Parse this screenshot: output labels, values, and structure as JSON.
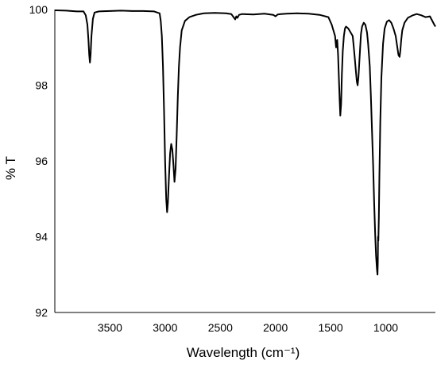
{
  "chart_data": {
    "type": "line",
    "xlabel": "Wavelength (cm⁻¹)",
    "ylabel": "% T",
    "xlim": [
      4000,
      550
    ],
    "ylim": [
      92,
      100
    ],
    "x_reversed": true,
    "xticks": [
      {
        "value": 3500,
        "label": "3500"
      },
      {
        "value": 3000,
        "label": "3000"
      },
      {
        "value": 2500,
        "label": "2500"
      },
      {
        "value": 2000,
        "label": "2000"
      },
      {
        "value": 1500,
        "label": "1500"
      },
      {
        "value": 1000,
        "label": "1000"
      }
    ],
    "yticks": [
      {
        "value": 100,
        "label": "100"
      },
      {
        "value": 98,
        "label": "98"
      },
      {
        "value": 96,
        "label": "96"
      },
      {
        "value": 94,
        "label": "94"
      },
      {
        "value": 92,
        "label": "92"
      }
    ],
    "grid": false,
    "series": [
      {
        "color": "#000000",
        "x": [
          4000,
          3900,
          3800,
          3740,
          3720,
          3705,
          3695,
          3688,
          3682,
          3676,
          3668,
          3655,
          3640,
          3600,
          3500,
          3400,
          3300,
          3200,
          3100,
          3050,
          3040,
          3030,
          3020,
          3010,
          3000,
          2990,
          2982,
          2975,
          2965,
          2955,
          2945,
          2935,
          2925,
          2915,
          2905,
          2895,
          2885,
          2875,
          2865,
          2850,
          2820,
          2780,
          2720,
          2650,
          2550,
          2450,
          2400,
          2380,
          2365,
          2355,
          2345,
          2330,
          2300,
          2200,
          2100,
          2020,
          2000,
          1980,
          1950,
          1900,
          1800,
          1700,
          1600,
          1520,
          1490,
          1460,
          1450,
          1440,
          1432,
          1425,
          1418,
          1412,
          1405,
          1398,
          1390,
          1380,
          1370,
          1360,
          1340,
          1320,
          1300,
          1290,
          1280,
          1270,
          1262,
          1255,
          1248,
          1240,
          1232,
          1225,
          1215,
          1200,
          1185,
          1170,
          1160,
          1145,
          1135,
          1125,
          1115,
          1105,
          1095,
          1088,
          1080,
          1075,
          1072,
          1070,
          1067,
          1063,
          1058,
          1050,
          1040,
          1025,
          1010,
          990,
          970,
          950,
          930,
          910,
          895,
          885,
          875,
          868,
          860,
          850,
          830,
          800,
          760,
          720,
          680,
          640,
          600,
          560,
          550
        ],
        "y": [
          99.98,
          99.97,
          99.95,
          99.95,
          99.85,
          99.6,
          99.2,
          98.8,
          98.6,
          98.8,
          99.3,
          99.75,
          99.92,
          99.95,
          99.96,
          99.97,
          99.96,
          99.96,
          99.95,
          99.9,
          99.7,
          99.3,
          98.5,
          97.3,
          96.0,
          95.0,
          94.65,
          94.9,
          95.6,
          96.2,
          96.45,
          96.3,
          95.9,
          95.45,
          95.8,
          96.7,
          97.7,
          98.5,
          99.0,
          99.45,
          99.7,
          99.8,
          99.86,
          99.9,
          99.91,
          99.9,
          99.88,
          99.8,
          99.74,
          99.82,
          99.78,
          99.86,
          99.88,
          99.87,
          99.89,
          99.86,
          99.82,
          99.87,
          99.88,
          99.89,
          99.9,
          99.89,
          99.86,
          99.8,
          99.6,
          99.3,
          99.0,
          99.2,
          98.8,
          98.2,
          97.6,
          97.2,
          97.5,
          98.3,
          98.9,
          99.3,
          99.5,
          99.55,
          99.5,
          99.4,
          99.3,
          99.0,
          98.7,
          98.35,
          98.1,
          98.0,
          98.2,
          98.6,
          99.0,
          99.35,
          99.55,
          99.65,
          99.6,
          99.4,
          99.1,
          98.5,
          97.7,
          96.8,
          95.9,
          94.9,
          94.0,
          93.5,
          93.15,
          93.0,
          93.3,
          94.0,
          93.9,
          94.5,
          95.6,
          97.0,
          98.2,
          99.1,
          99.5,
          99.68,
          99.72,
          99.65,
          99.5,
          99.3,
          99.0,
          98.8,
          98.75,
          98.9,
          99.2,
          99.45,
          99.65,
          99.78,
          99.84,
          99.88,
          99.85,
          99.8,
          99.82,
          99.6,
          99.55
        ]
      }
    ]
  }
}
